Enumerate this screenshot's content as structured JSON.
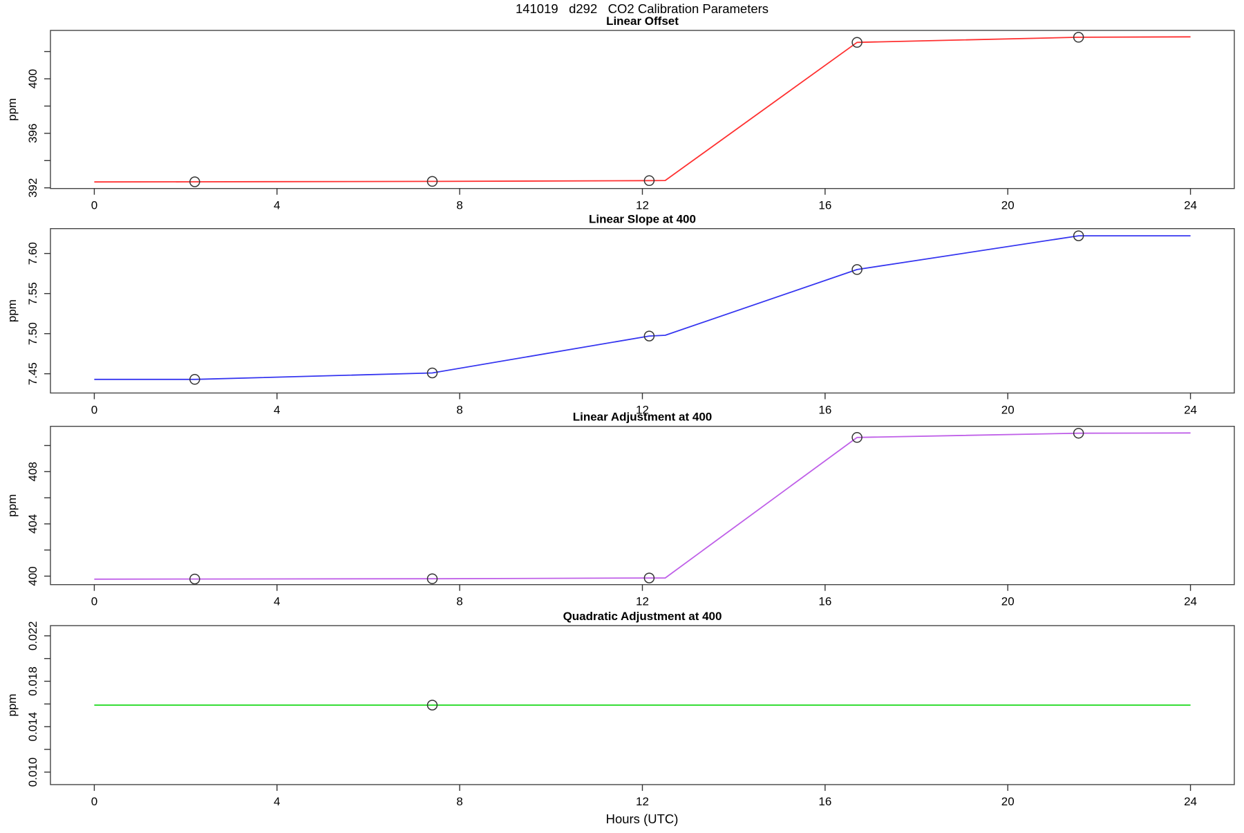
{
  "page_title": "141019   d292   CO2 Calibration Parameters",
  "x_axis_title": "Hours (UTC)",
  "frame_color": "#444444",
  "tick_color": "#333333",
  "marker_color": "#333333",
  "chart_data": [
    {
      "type": "line",
      "title": "Linear Offset",
      "ylabel": "ppm",
      "xlabel": "",
      "color": "#ff3030",
      "grid": false,
      "legend": "none",
      "xlim": [
        -0.96,
        24.96
      ],
      "ylim": [
        391.95,
        403.55
      ],
      "x_ticks": [
        0,
        4,
        8,
        12,
        16,
        20,
        24
      ],
      "y_ticks": [
        392,
        394,
        396,
        398,
        400,
        402
      ],
      "y_tick_labels": [
        "392",
        "",
        "396",
        "",
        "400",
        ""
      ],
      "line_x": [
        0,
        2.2,
        7.4,
        12.15,
        12.5,
        16.7,
        21.55,
        24
      ],
      "line_y": [
        392.43,
        392.44,
        392.47,
        392.53,
        392.54,
        402.67,
        403.05,
        403.08
      ],
      "marker_x": [
        2.2,
        7.4,
        12.15,
        16.7,
        21.55
      ],
      "marker_y": [
        392.44,
        392.47,
        392.53,
        402.67,
        403.05
      ]
    },
    {
      "type": "line",
      "title": "Linear Slope at 400",
      "ylabel": "ppm",
      "xlabel": "",
      "color": "#3535f0",
      "grid": false,
      "legend": "none",
      "xlim": [
        -0.96,
        24.96
      ],
      "ylim": [
        7.426,
        7.631
      ],
      "x_ticks": [
        0,
        4,
        8,
        12,
        16,
        20,
        24
      ],
      "y_ticks": [
        7.45,
        7.5,
        7.55,
        7.6
      ],
      "y_tick_labels": [
        "7.45",
        "7.50",
        "7.55",
        "7.60"
      ],
      "line_x": [
        0,
        2.2,
        7.4,
        12.15,
        12.5,
        16.7,
        21.55,
        24
      ],
      "line_y": [
        7.443,
        7.443,
        7.451,
        7.497,
        7.498,
        7.58,
        7.622,
        7.622
      ],
      "marker_x": [
        2.2,
        7.4,
        12.15,
        16.7,
        21.55
      ],
      "marker_y": [
        7.443,
        7.451,
        7.497,
        7.58,
        7.622
      ]
    },
    {
      "type": "line",
      "title": "Linear Adjustment at 400",
      "ylabel": "ppm",
      "xlabel": "",
      "color": "#bf5fe8",
      "grid": false,
      "legend": "none",
      "xlim": [
        -0.96,
        24.96
      ],
      "ylim": [
        399.35,
        411.47
      ],
      "x_ticks": [
        0,
        4,
        8,
        12,
        16,
        20,
        24
      ],
      "y_ticks": [
        400,
        402,
        404,
        406,
        408,
        410
      ],
      "y_tick_labels": [
        "400",
        "",
        "404",
        "",
        "408",
        ""
      ],
      "line_x": [
        0,
        2.2,
        7.4,
        12.15,
        12.5,
        16.7,
        21.55,
        24
      ],
      "line_y": [
        399.77,
        399.78,
        399.8,
        399.86,
        399.86,
        410.62,
        410.94,
        410.96
      ],
      "marker_x": [
        2.2,
        7.4,
        12.15,
        16.7,
        21.55
      ],
      "marker_y": [
        399.78,
        399.8,
        399.86,
        410.62,
        410.94
      ]
    },
    {
      "type": "line",
      "title": "Quadratic Adjustment at 400",
      "ylabel": "ppm",
      "xlabel": "Hours (UTC)",
      "color": "#18d818",
      "grid": false,
      "legend": "none",
      "xlim": [
        -0.96,
        24.96
      ],
      "ylim": [
        0.0089,
        0.0229
      ],
      "x_ticks": [
        0,
        4,
        8,
        12,
        16,
        20,
        24
      ],
      "y_ticks": [
        0.01,
        0.012,
        0.014,
        0.016,
        0.018,
        0.02,
        0.022
      ],
      "y_tick_labels": [
        "0.010",
        "",
        "0.014",
        "",
        "0.018",
        "",
        "0.022"
      ],
      "line_x": [
        0,
        24
      ],
      "line_y": [
        0.0159,
        0.0159
      ],
      "marker_x": [
        7.4
      ],
      "marker_y": [
        0.0159
      ]
    }
  ]
}
